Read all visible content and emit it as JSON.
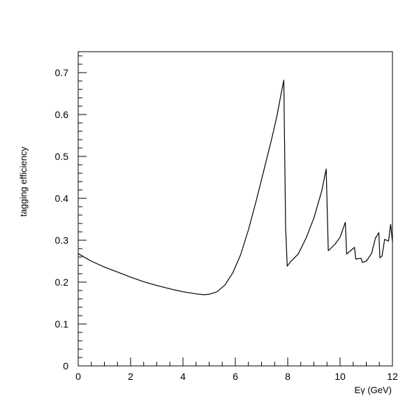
{
  "chart_data": {
    "type": "line",
    "title": "",
    "xlabel": "Eγ (GeV)",
    "ylabel": "tagging efficiency",
    "xlim": [
      0,
      12
    ],
    "ylim": [
      0,
      0.75
    ],
    "grid": false,
    "x_ticks": [
      "0",
      "2",
      "4",
      "6",
      "8",
      "10",
      "12"
    ],
    "y_ticks": [
      "0",
      "0.1",
      "0.2",
      "0.3",
      "0.4",
      "0.5",
      "0.6",
      "0.7"
    ],
    "series": [
      {
        "points": [
          [
            0.0,
            0.268
          ],
          [
            0.5,
            0.25
          ],
          [
            1.0,
            0.236
          ],
          [
            1.5,
            0.224
          ],
          [
            2.0,
            0.212
          ],
          [
            2.5,
            0.201
          ],
          [
            3.0,
            0.192
          ],
          [
            3.5,
            0.184
          ],
          [
            4.0,
            0.177
          ],
          [
            4.5,
            0.172
          ],
          [
            4.8,
            0.17
          ],
          [
            5.0,
            0.171
          ],
          [
            5.3,
            0.177
          ],
          [
            5.6,
            0.193
          ],
          [
            5.9,
            0.222
          ],
          [
            6.2,
            0.265
          ],
          [
            6.5,
            0.325
          ],
          [
            6.8,
            0.395
          ],
          [
            7.1,
            0.47
          ],
          [
            7.4,
            0.545
          ],
          [
            7.6,
            0.6
          ],
          [
            7.75,
            0.65
          ],
          [
            7.85,
            0.682
          ],
          [
            7.92,
            0.33
          ],
          [
            7.98,
            0.238
          ],
          [
            8.1,
            0.248
          ],
          [
            8.4,
            0.267
          ],
          [
            8.7,
            0.305
          ],
          [
            9.0,
            0.353
          ],
          [
            9.3,
            0.418
          ],
          [
            9.47,
            0.47
          ],
          [
            9.55,
            0.275
          ],
          [
            9.8,
            0.29
          ],
          [
            10.0,
            0.307
          ],
          [
            10.2,
            0.343
          ],
          [
            10.25,
            0.267
          ],
          [
            10.4,
            0.275
          ],
          [
            10.55,
            0.283
          ],
          [
            10.6,
            0.255
          ],
          [
            10.8,
            0.257
          ],
          [
            10.85,
            0.247
          ],
          [
            11.0,
            0.25
          ],
          [
            11.2,
            0.268
          ],
          [
            11.35,
            0.305
          ],
          [
            11.48,
            0.318
          ],
          [
            11.52,
            0.258
          ],
          [
            11.6,
            0.262
          ],
          [
            11.7,
            0.302
          ],
          [
            11.85,
            0.298
          ],
          [
            11.93,
            0.338
          ],
          [
            12.0,
            0.296
          ]
        ]
      }
    ]
  }
}
